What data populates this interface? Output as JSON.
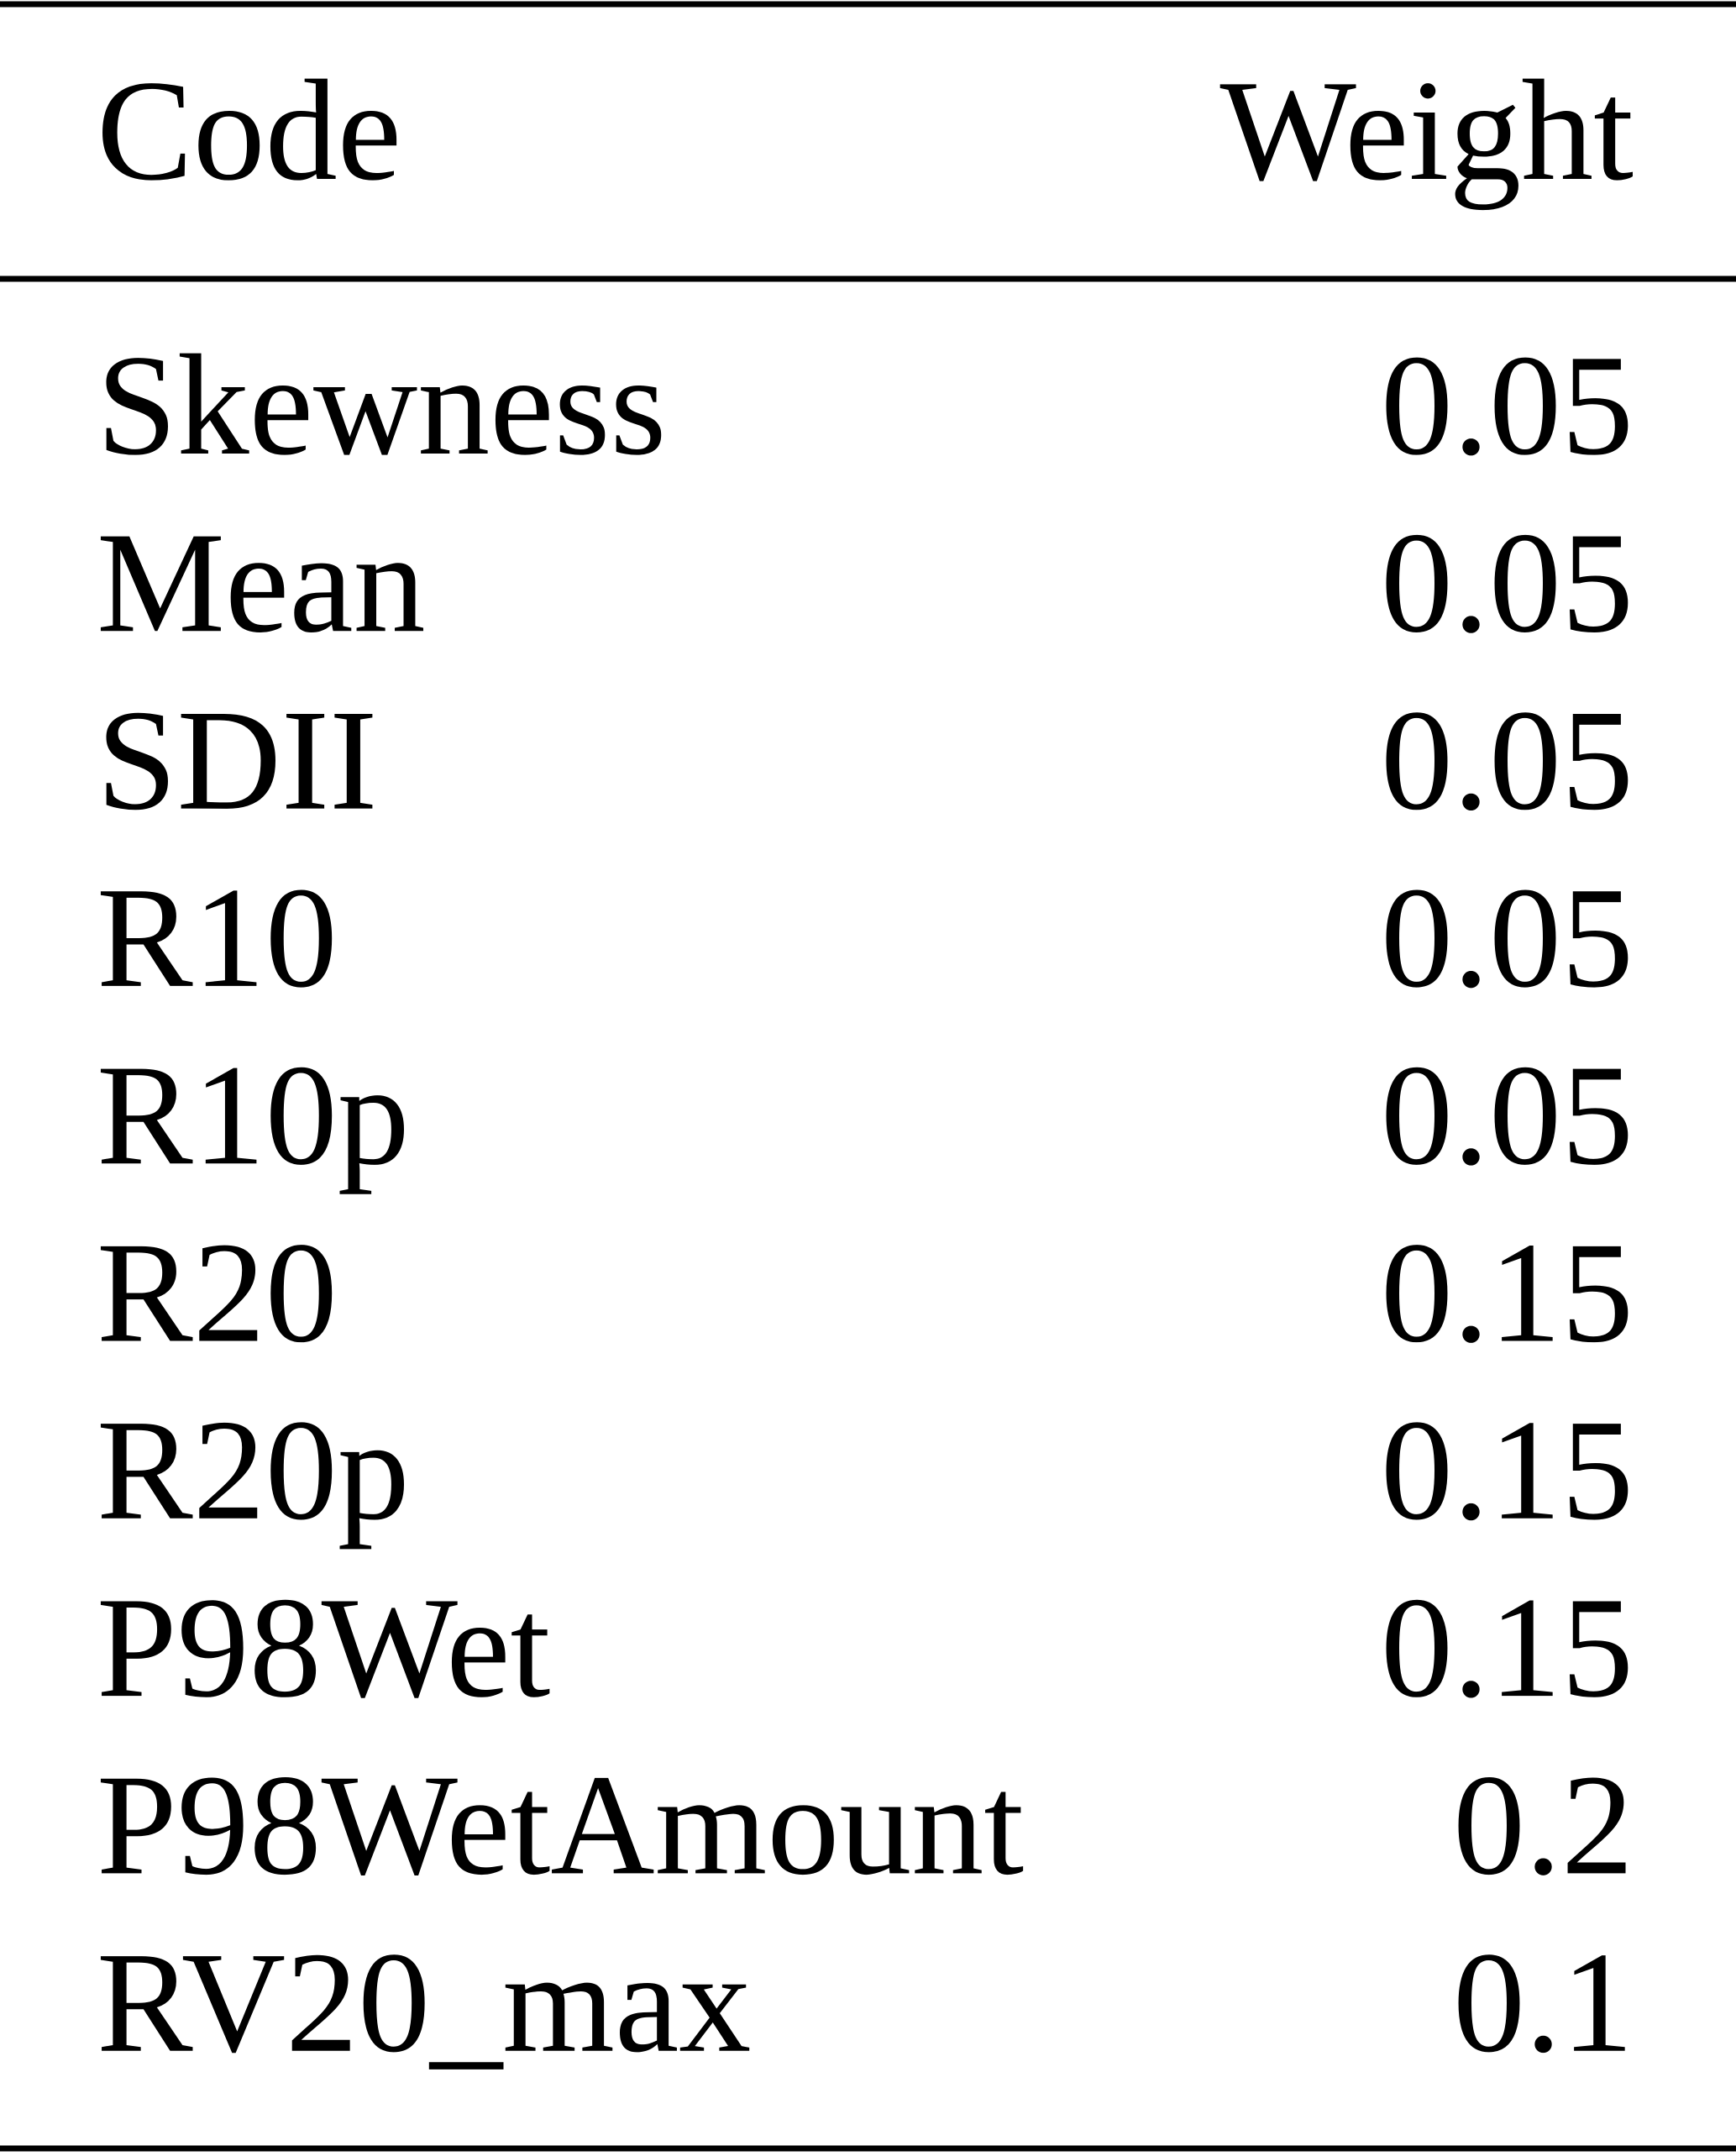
{
  "table": {
    "header": [
      "Code",
      "Weight"
    ],
    "rows": [
      [
        "Skewness",
        "0.05"
      ],
      [
        "Mean",
        "0.05"
      ],
      [
        "SDII",
        "0.05"
      ],
      [
        "R10",
        "0.05"
      ],
      [
        "R10p",
        "0.05"
      ],
      [
        "R20",
        "0.15"
      ],
      [
        "R20p",
        "0.15"
      ],
      [
        "P98Wet",
        "0.15"
      ],
      [
        "P98WetAmount",
        "0.2"
      ],
      [
        "RV20_max",
        "0.1"
      ]
    ]
  }
}
